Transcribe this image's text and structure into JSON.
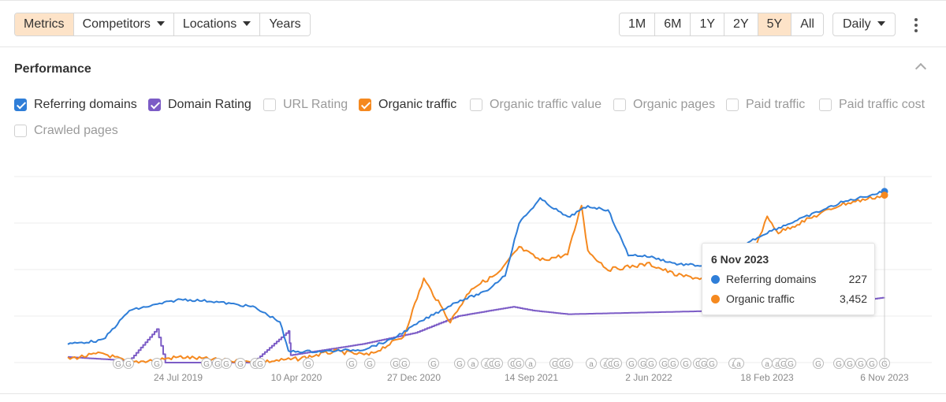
{
  "toolbar": {
    "left_segments": [
      {
        "label": "Metrics",
        "active": true,
        "dropdown": false
      },
      {
        "label": "Competitors",
        "active": false,
        "dropdown": true
      },
      {
        "label": "Locations",
        "active": false,
        "dropdown": true
      },
      {
        "label": "Years",
        "active": false,
        "dropdown": false
      }
    ],
    "ranges": [
      "1M",
      "6M",
      "1Y",
      "2Y",
      "5Y",
      "All"
    ],
    "active_range": "5Y",
    "granularity": "Daily",
    "more_icon": "kebab-menu-icon"
  },
  "section": {
    "title": "Performance",
    "collapse_icon": "chevron-up-icon"
  },
  "metrics": [
    {
      "label": "Referring domains",
      "checked": true,
      "color": "#2f7ed8"
    },
    {
      "label": "Domain Rating",
      "checked": true,
      "color": "#7c5cc6"
    },
    {
      "label": "URL Rating",
      "checked": false,
      "color": "#cccccc"
    },
    {
      "label": "Organic traffic",
      "checked": true,
      "color": "#f5891f"
    },
    {
      "label": "Organic traffic value",
      "checked": false,
      "color": "#cccccc"
    },
    {
      "label": "Organic pages",
      "checked": false,
      "color": "#cccccc"
    },
    {
      "label": "Paid traffic",
      "checked": false,
      "color": "#cccccc"
    },
    {
      "label": "Paid traffic cost",
      "checked": false,
      "color": "#cccccc"
    },
    {
      "label": "Crawled pages",
      "checked": false,
      "color": "#cccccc"
    }
  ],
  "tooltip": {
    "date": "6 Nov 2023",
    "rows": [
      {
        "label": "Referring domains",
        "value": "227",
        "color": "#2f7ed8"
      },
      {
        "label": "Organic traffic",
        "value": "3,452",
        "color": "#f5891f"
      }
    ]
  },
  "chart_data": {
    "type": "line",
    "x_tick_labels": [
      "24 Jul 2019",
      "10 Apr 2020",
      "27 Dec 2020",
      "14 Sep 2021",
      "2 Jun 2022",
      "18 Feb 2023",
      "6 Nov 2023"
    ],
    "x_range": [
      "2018-11",
      "2023-11-06"
    ],
    "grid": true,
    "y_axis_labels_visible": false,
    "series": [
      {
        "name": "Referring domains",
        "color": "#2f7ed8",
        "points": [
          [
            "2018-11-15",
            0.1
          ],
          [
            "2019-02-01",
            0.12
          ],
          [
            "2019-04-01",
            0.28
          ],
          [
            "2019-07-24",
            0.34
          ],
          [
            "2019-10-01",
            0.33
          ],
          [
            "2020-01-01",
            0.3
          ],
          [
            "2020-03-01",
            0.22
          ],
          [
            "2020-03-20",
            0.06
          ],
          [
            "2020-06-01",
            0.06
          ],
          [
            "2020-09-01",
            0.07
          ],
          [
            "2020-11-01",
            0.12
          ],
          [
            "2021-01-15",
            0.23
          ],
          [
            "2021-04-01",
            0.33
          ],
          [
            "2021-06-01",
            0.38
          ],
          [
            "2021-07-15",
            0.47
          ],
          [
            "2021-08-15",
            0.75
          ],
          [
            "2021-10-01",
            0.88
          ],
          [
            "2021-12-01",
            0.78
          ],
          [
            "2022-01-15",
            0.84
          ],
          [
            "2022-03-01",
            0.82
          ],
          [
            "2022-04-15",
            0.58
          ],
          [
            "2022-06-01",
            0.57
          ],
          [
            "2022-08-01",
            0.53
          ],
          [
            "2022-10-01",
            0.52
          ],
          [
            "2022-12-01",
            0.6
          ],
          [
            "2023-02-18",
            0.7
          ],
          [
            "2023-05-01",
            0.77
          ],
          [
            "2023-08-01",
            0.86
          ],
          [
            "2023-11-06",
            0.92
          ]
        ]
      },
      {
        "name": "Organic traffic",
        "color": "#f5891f",
        "points": [
          [
            "2018-11-15",
            0.02
          ],
          [
            "2019-02-01",
            0.05
          ],
          [
            "2019-04-01",
            0.0
          ],
          [
            "2019-07-24",
            0.03
          ],
          [
            "2020-01-01",
            0.0
          ],
          [
            "2020-04-10",
            0.02
          ],
          [
            "2020-07-01",
            0.06
          ],
          [
            "2020-09-15",
            0.04
          ],
          [
            "2020-12-01",
            0.14
          ],
          [
            "2021-01-15",
            0.45
          ],
          [
            "2021-03-15",
            0.22
          ],
          [
            "2021-05-01",
            0.4
          ],
          [
            "2021-07-01",
            0.48
          ],
          [
            "2021-08-15",
            0.62
          ],
          [
            "2021-10-01",
            0.55
          ],
          [
            "2021-12-01",
            0.58
          ],
          [
            "2022-01-01",
            0.85
          ],
          [
            "2022-01-15",
            0.6
          ],
          [
            "2022-03-01",
            0.5
          ],
          [
            "2022-06-01",
            0.53
          ],
          [
            "2022-08-01",
            0.47
          ],
          [
            "2022-10-01",
            0.45
          ],
          [
            "2022-12-01",
            0.52
          ],
          [
            "2023-01-15",
            0.58
          ],
          [
            "2023-02-18",
            0.78
          ],
          [
            "2023-03-15",
            0.7
          ],
          [
            "2023-05-01",
            0.75
          ],
          [
            "2023-08-01",
            0.85
          ],
          [
            "2023-11-06",
            0.9
          ]
        ]
      },
      {
        "name": "Domain Rating",
        "color": "#7c5cc6",
        "points": [
          [
            "2018-11-15",
            0.03
          ],
          [
            "2019-04-01",
            0.01
          ],
          [
            "2019-06-01",
            0.18
          ],
          [
            "2019-06-20",
            0.0
          ],
          [
            "2020-01-01",
            0.0
          ],
          [
            "2020-03-20",
            0.17
          ],
          [
            "2020-03-25",
            0.04
          ],
          [
            "2020-09-01",
            0.1
          ],
          [
            "2020-12-27",
            0.16
          ],
          [
            "2021-04-01",
            0.25
          ],
          [
            "2021-08-01",
            0.3
          ],
          [
            "2021-09-14",
            0.28
          ],
          [
            "2021-12-01",
            0.26
          ],
          [
            "2022-06-01",
            0.27
          ],
          [
            "2022-12-01",
            0.28
          ],
          [
            "2023-02-18",
            0.3
          ],
          [
            "2023-06-01",
            0.32
          ],
          [
            "2023-09-01",
            0.33
          ],
          [
            "2023-11-06",
            0.35
          ]
        ]
      }
    ],
    "annotation_markers": [
      "G",
      "G",
      "G",
      "G",
      "G",
      "G",
      "G",
      "G",
      "G",
      "G",
      "G",
      "G",
      "G",
      "G",
      "G",
      "G",
      "a",
      "a",
      "G",
      "G",
      "G",
      "G",
      "a",
      "G",
      "G",
      "G",
      "a",
      "a",
      "G",
      "G",
      "G",
      "G",
      "G",
      "G",
      "G",
      "G",
      "G",
      "G",
      "G",
      "a",
      "a",
      "a",
      "a",
      "G",
      "G",
      "G"
    ]
  }
}
